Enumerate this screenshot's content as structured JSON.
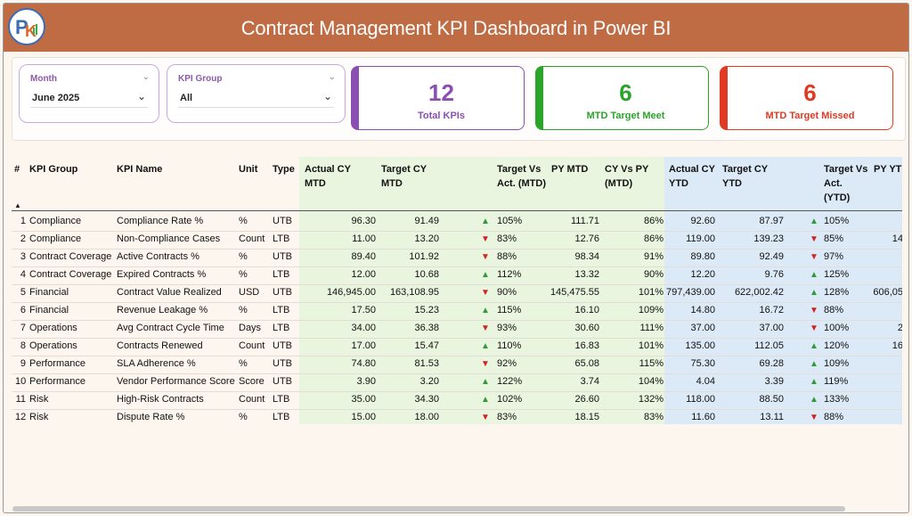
{
  "header": {
    "title": "Contract Management KPI Dashboard in Power BI"
  },
  "logo": {
    "letters": "PK"
  },
  "filters": {
    "month": {
      "title": "Month",
      "value": "June 2025"
    },
    "kpi_group": {
      "title": "KPI Group",
      "value": "All"
    }
  },
  "cards": [
    {
      "value": "12",
      "label": "Total KPIs",
      "color": "#8a4fb0"
    },
    {
      "value": "6",
      "label": "MTD Target Meet",
      "color": "#2aa52a"
    },
    {
      "value": "6",
      "label": "MTD Target Missed",
      "color": "#e03a22"
    }
  ],
  "table": {
    "headers": [
      "#",
      "KPI Group",
      "KPI Name",
      "Unit",
      "Type",
      "Actual CY MTD",
      "Target CY MTD",
      "",
      "Target Vs Act. (MTD)",
      "PY MTD",
      "CY Vs PY (MTD)",
      "Actual CY YTD",
      "Target CY YTD",
      "",
      "Target Vs Act. (YTD)",
      "PY YT"
    ],
    "rows": [
      [
        "1",
        "Compliance",
        "Compliance Rate %",
        "%",
        "UTB",
        "96.30",
        "91.49",
        "up",
        "105%",
        "111.71",
        "86%",
        "92.60",
        "87.97",
        "up",
        "105%",
        ""
      ],
      [
        "2",
        "Compliance",
        "Non-Compliance Cases",
        "Count",
        "LTB",
        "11.00",
        "13.20",
        "down",
        "83%",
        "12.76",
        "86%",
        "119.00",
        "139.23",
        "down",
        "85%",
        "14"
      ],
      [
        "3",
        "Contract Coverage",
        "Active Contracts %",
        "%",
        "UTB",
        "89.40",
        "101.92",
        "down",
        "88%",
        "98.34",
        "91%",
        "89.80",
        "92.49",
        "down",
        "97%",
        ""
      ],
      [
        "4",
        "Contract Coverage",
        "Expired Contracts %",
        "%",
        "LTB",
        "12.00",
        "10.68",
        "up",
        "112%",
        "13.32",
        "90%",
        "12.20",
        "9.76",
        "up",
        "125%",
        ""
      ],
      [
        "5",
        "Financial",
        "Contract Value Realized",
        "USD",
        "UTB",
        "146,945.00",
        "163,108.95",
        "down",
        "90%",
        "145,475.55",
        "101%",
        "797,439.00",
        "622,002.42",
        "up",
        "128%",
        "606,05"
      ],
      [
        "6",
        "Financial",
        "Revenue Leakage %",
        "%",
        "LTB",
        "17.50",
        "15.23",
        "up",
        "115%",
        "16.10",
        "109%",
        "14.80",
        "16.72",
        "down",
        "88%",
        ""
      ],
      [
        "7",
        "Operations",
        "Avg Contract Cycle Time",
        "Days",
        "LTB",
        "34.00",
        "36.38",
        "down",
        "93%",
        "30.60",
        "111%",
        "37.00",
        "37.00",
        "down",
        "100%",
        "2"
      ],
      [
        "8",
        "Operations",
        "Contracts Renewed",
        "Count",
        "UTB",
        "17.00",
        "15.47",
        "up",
        "110%",
        "16.83",
        "101%",
        "135.00",
        "112.05",
        "up",
        "120%",
        "16"
      ],
      [
        "9",
        "Performance",
        "SLA Adherence %",
        "%",
        "UTB",
        "74.80",
        "81.53",
        "down",
        "92%",
        "65.08",
        "115%",
        "75.30",
        "69.28",
        "up",
        "109%",
        ""
      ],
      [
        "10",
        "Performance",
        "Vendor Performance Score",
        "Score",
        "UTB",
        "3.90",
        "3.20",
        "up",
        "122%",
        "3.74",
        "104%",
        "4.04",
        "3.39",
        "up",
        "119%",
        ""
      ],
      [
        "11",
        "Risk",
        "High-Risk Contracts",
        "Count",
        "LTB",
        "35.00",
        "34.30",
        "up",
        "102%",
        "26.60",
        "132%",
        "118.00",
        "88.50",
        "up",
        "133%",
        ""
      ],
      [
        "12",
        "Risk",
        "Dispute Rate %",
        "%",
        "LTB",
        "15.00",
        "18.00",
        "down",
        "83%",
        "18.15",
        "83%",
        "11.60",
        "13.11",
        "down",
        "88%",
        ""
      ]
    ],
    "arrow_glyphs": {
      "up": "▲",
      "down": "▼"
    },
    "arrow_colors": {
      "up": "#2e9b3a",
      "down": "#d42020"
    },
    "sort_indicator": "▲"
  },
  "colors": {
    "header_bg": "#bf6b43",
    "mtd_band": "#e9f5df",
    "ytd_band": "#dceaf7"
  }
}
